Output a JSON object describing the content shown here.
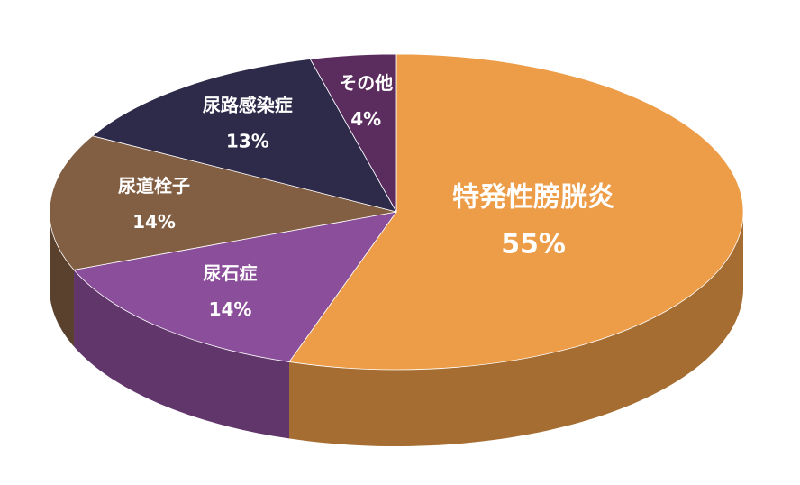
{
  "chart_data": {
    "type": "pie",
    "categories": [
      "特発性膀胱炎",
      "尿石症",
      "尿道栓子",
      "尿路感染症",
      "その他"
    ],
    "values": [
      55,
      14,
      14,
      13,
      4
    ],
    "value_labels": [
      "55%",
      "14%",
      "14%",
      "13%",
      "4%"
    ],
    "colors": [
      "#ED9C48",
      "#8B4E9A",
      "#825E42",
      "#2D2A4A",
      "#5B2D5F"
    ]
  }
}
